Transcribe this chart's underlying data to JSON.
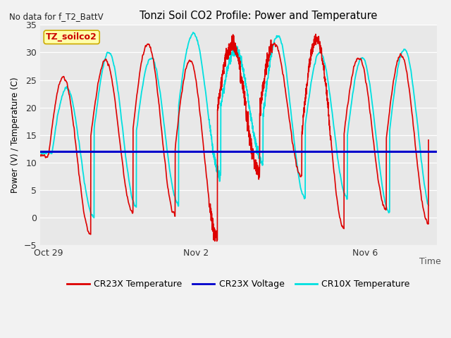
{
  "title": "Tonzi Soil CO2 Profile: Power and Temperature",
  "subtitle": "No data for f_T2_BattV",
  "ylabel": "Power (V) / Temperature (C)",
  "xlabel": "Time",
  "ylim": [
    -5,
    35
  ],
  "yticks": [
    -5,
    0,
    5,
    10,
    15,
    20,
    25,
    30,
    35
  ],
  "xtick_labels": [
    "Oct 29",
    "Nov 2",
    "Nov 6"
  ],
  "xtick_positions": [
    0.5,
    4.0,
    8.0
  ],
  "xlim": [
    0.3,
    9.7
  ],
  "bg_color": "#e8e8e8",
  "fig_bg_color": "#f2f2f2",
  "cr23x_color": "#dd0000",
  "cr10x_color": "#00e0e0",
  "voltage_color": "#0000cc",
  "voltage_value": 12.0,
  "annotation_text": "TZ_soilco2",
  "annotation_fg": "#cc0000",
  "annotation_bg": "#ffffaa",
  "annotation_edge": "#ccaa00",
  "legend_entries": [
    "CR23X Temperature",
    "CR23X Voltage",
    "CR10X Temperature"
  ],
  "peak_values_cr23x": [
    25.5,
    28.5,
    31.5,
    28.5,
    31.5,
    31.5,
    32.5,
    29.0,
    29.5
  ],
  "trough_values_cr23x": [
    -3.0,
    1.0,
    0.5,
    -3.5,
    8.0,
    7.5,
    -2.0,
    1.5,
    -1.0
  ],
  "peak_values_cr10x": [
    23.5,
    30.0,
    29.0,
    33.5,
    30.5,
    33.0,
    30.0,
    29.0,
    30.5
  ],
  "trough_values_cr10x": [
    0.0,
    2.0,
    2.5,
    7.5,
    10.0,
    3.5,
    3.5,
    1.0,
    1.0
  ],
  "cycle_period": 1.0,
  "n_cycles": 9,
  "start_x": 0.5
}
